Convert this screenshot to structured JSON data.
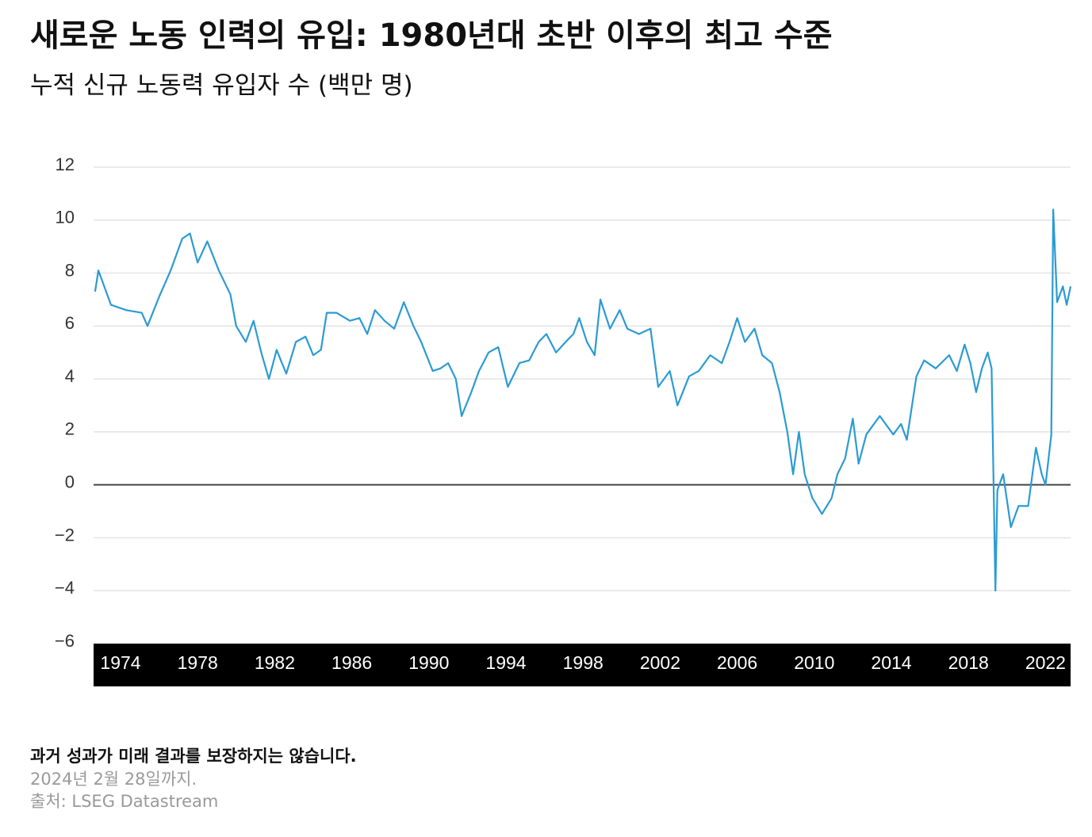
{
  "chart_data": {
    "type": "line",
    "title": "새로운 노동 인력의 유입: 1980년대 초반 이후의 최고 수준",
    "subtitle": "누적 신규 노동력 유입자 수 (백만 명)",
    "notes": [
      "과거 성과가 미래 결과를 보장하지는 않습니다.",
      "2024년 2월 28일까지.",
      "출처: LSEG Datastream"
    ],
    "color": "#2b9bd3",
    "grid": true,
    "xlim": [
      1972.6,
      2023.3
    ],
    "ylim": [
      -6,
      12
    ],
    "xticks": [
      1974,
      1978,
      1982,
      1986,
      1990,
      1994,
      1998,
      2002,
      2006,
      2010,
      2014,
      2018,
      2022
    ],
    "yticks": [
      {
        "value": -6,
        "label": "−6"
      },
      {
        "value": -4,
        "label": "−4"
      },
      {
        "value": -2,
        "label": "−2"
      },
      0,
      2,
      4,
      6,
      8,
      10,
      12
    ],
    "x": [
      1972.68,
      1972.85,
      1973.5,
      1974.3,
      1975.1,
      1975.4,
      1976.0,
      1976.6,
      1977.2,
      1977.6,
      1978.0,
      1978.5,
      1979.1,
      1979.7,
      1980.0,
      1980.5,
      1980.9,
      1981.3,
      1981.7,
      1982.1,
      1982.6,
      1983.1,
      1983.6,
      1984.0,
      1984.4,
      1984.7,
      1985.2,
      1985.9,
      1986.4,
      1986.8,
      1987.2,
      1987.7,
      1988.2,
      1988.7,
      1989.2,
      1989.6,
      1990.2,
      1990.6,
      1991.0,
      1991.4,
      1991.7,
      1992.2,
      1992.6,
      1993.1,
      1993.6,
      1994.1,
      1994.7,
      1995.2,
      1995.7,
      1996.1,
      1996.6,
      1997.1,
      1997.5,
      1997.8,
      1998.2,
      1998.6,
      1998.9,
      1999.4,
      1999.9,
      2000.3,
      2000.9,
      2001.5,
      2001.9,
      2002.5,
      2002.9,
      2003.5,
      2004.0,
      2004.6,
      2005.2,
      2005.6,
      2006.0,
      2006.4,
      2006.9,
      2007.3,
      2007.8,
      2008.2,
      2008.6,
      2008.9,
      2009.2,
      2009.5,
      2009.9,
      2010.4,
      2010.9,
      2011.2,
      2011.6,
      2012.0,
      2012.3,
      2012.7,
      2013.0,
      2013.4,
      2014.1,
      2014.5,
      2014.8,
      2015.3,
      2015.7,
      2016.3,
      2017.0,
      2017.4,
      2017.8,
      2018.1,
      2018.4,
      2018.7,
      2019.0,
      2019.2,
      2019.4,
      2019.5,
      2019.8,
      2020.2,
      2020.6,
      2021.1,
      2021.5,
      2021.8,
      2022.0,
      2022.3,
      2022.4,
      2022.6,
      2022.9,
      2023.1,
      2023.3
    ],
    "values": [
      7.3,
      8.1,
      6.8,
      6.6,
      6.5,
      6.0,
      7.1,
      8.1,
      9.3,
      9.5,
      8.4,
      9.2,
      8.1,
      7.2,
      6.0,
      5.4,
      6.2,
      5.0,
      4.0,
      5.1,
      4.2,
      5.4,
      5.6,
      4.9,
      5.1,
      6.5,
      6.5,
      6.2,
      6.3,
      5.7,
      6.6,
      6.2,
      5.9,
      6.9,
      6.0,
      5.4,
      4.3,
      4.4,
      4.6,
      4.0,
      2.6,
      3.5,
      4.3,
      5.0,
      5.2,
      3.7,
      4.6,
      4.7,
      5.4,
      5.7,
      5.0,
      5.4,
      5.7,
      6.3,
      5.4,
      4.9,
      7.0,
      5.9,
      6.6,
      5.9,
      5.7,
      5.9,
      3.7,
      4.3,
      3.0,
      4.1,
      4.3,
      4.9,
      4.6,
      5.4,
      6.3,
      5.4,
      5.9,
      4.9,
      4.6,
      3.5,
      2.0,
      0.4,
      2.0,
      0.4,
      -0.5,
      -1.1,
      -0.5,
      0.4,
      1.0,
      2.5,
      0.8,
      1.9,
      2.2,
      2.6,
      1.9,
      2.3,
      1.7,
      4.1,
      4.7,
      4.4,
      4.9,
      4.3,
      5.3,
      4.6,
      3.5,
      4.4,
      5.0,
      4.4,
      -4.0,
      -0.2,
      0.4,
      -1.6,
      -0.8,
      -0.8,
      1.4,
      0.4,
      0.0,
      1.9,
      10.4,
      6.9,
      7.5,
      6.8,
      7.5
    ]
  }
}
